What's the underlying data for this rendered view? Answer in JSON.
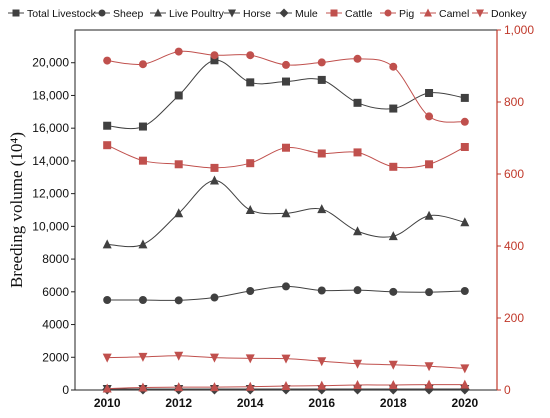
{
  "chart_data": {
    "type": "line",
    "title": "",
    "xlabel": "",
    "ylabel": "Breeding volume (10⁴)",
    "x": [
      2010,
      2011,
      2012,
      2013,
      2014,
      2015,
      2016,
      2017,
      2018,
      2019,
      2020
    ],
    "xticks": [
      "2010",
      "2012",
      "2014",
      "2016",
      "2018",
      "2020"
    ],
    "ylim_left": [
      0,
      22000
    ],
    "yticks_left": [
      "0",
      "2000",
      "4000",
      "6000",
      "8000",
      "10,000",
      "12,000",
      "14,000",
      "16,000",
      "18,000",
      "20,000"
    ],
    "ylim_right": [
      0,
      1000
    ],
    "yticks_right": [
      "0",
      "200",
      "400",
      "600",
      "800",
      "1,000"
    ],
    "legend_position": "top",
    "series": [
      {
        "name": "Total Livestock",
        "axis": "left",
        "color": "#404040",
        "marker": "square",
        "values": [
          16150,
          16100,
          18000,
          20150,
          18800,
          18850,
          18950,
          17550,
          17200,
          18150,
          17850
        ]
      },
      {
        "name": "Sheep",
        "axis": "left",
        "color": "#404040",
        "marker": "circle",
        "values": [
          5500,
          5500,
          5480,
          5650,
          6050,
          6330,
          6080,
          6100,
          6000,
          5980,
          6050
        ]
      },
      {
        "name": "Live Poultry",
        "axis": "left",
        "color": "#404040",
        "marker": "triangle-up",
        "values": [
          8900,
          8900,
          10800,
          12800,
          11000,
          10800,
          11050,
          9700,
          9400,
          10650,
          10250
        ]
      },
      {
        "name": "Horse",
        "axis": "left",
        "color": "#404040",
        "marker": "triangle-down",
        "values": [
          60,
          60,
          60,
          60,
          60,
          60,
          60,
          60,
          60,
          60,
          60
        ]
      },
      {
        "name": "Mule",
        "axis": "left",
        "color": "#404040",
        "marker": "diamond",
        "values": [
          30,
          30,
          30,
          30,
          30,
          30,
          30,
          30,
          30,
          30,
          30
        ]
      },
      {
        "name": "Cattle",
        "axis": "right",
        "color": "#c0504d",
        "marker": "square",
        "values": [
          680,
          637,
          627,
          617,
          630,
          673,
          657,
          660,
          620,
          627,
          675
        ]
      },
      {
        "name": "Pig",
        "axis": "right",
        "color": "#c0504d",
        "marker": "circle",
        "values": [
          915,
          905,
          940,
          930,
          930,
          903,
          910,
          920,
          898,
          760,
          745
        ]
      },
      {
        "name": "Camel",
        "axis": "right",
        "color": "#c0504d",
        "marker": "triangle-up",
        "values": [
          4,
          7,
          8,
          8,
          9,
          11,
          12,
          14,
          14,
          15,
          15
        ]
      },
      {
        "name": "Donkey",
        "axis": "right",
        "color": "#c0504d",
        "marker": "triangle-down",
        "values": [
          90,
          92,
          95,
          90,
          88,
          87,
          80,
          73,
          70,
          66,
          60
        ]
      }
    ]
  }
}
